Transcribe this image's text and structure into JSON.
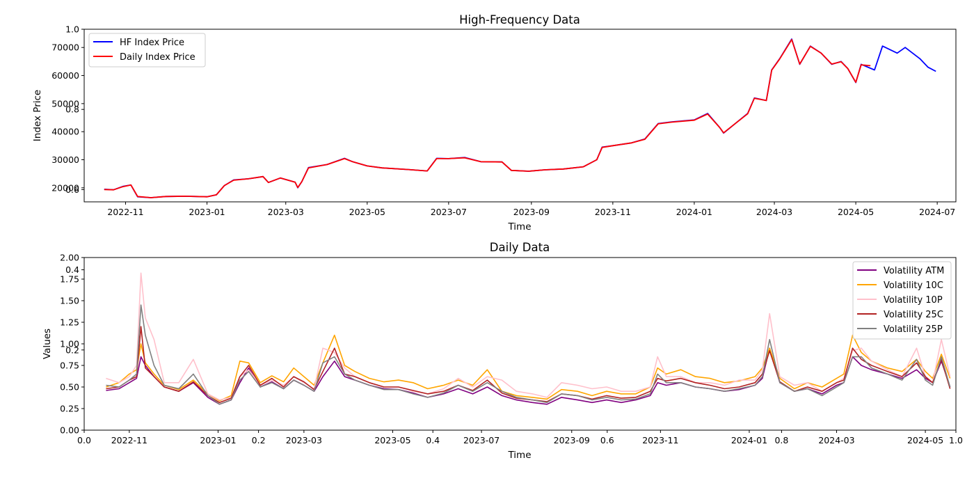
{
  "chart_data": [
    {
      "type": "line",
      "title": "High-Frequency Data",
      "xlabel": "Time",
      "ylabel": "Index Price",
      "xlim": [
        "2022-10-01",
        "2024-07-15"
      ],
      "ylim": [
        15000,
        76500
      ],
      "x_ticks": [
        "2022-11",
        "2023-01",
        "2023-03",
        "2023-05",
        "2023-07",
        "2023-09",
        "2023-11",
        "2024-01",
        "2024-03",
        "2024-05",
        "2024-07"
      ],
      "y_ticks": [
        20000,
        30000,
        40000,
        50000,
        60000,
        70000
      ],
      "ghost_axis": {
        "ticks": [
          "0.6",
          "0.8",
          "1.0"
        ]
      },
      "legend_position": "upper left",
      "series": [
        {
          "name": "HF Index Price",
          "color": "#0000ff",
          "x": [
            "2022-10-16",
            "2022-10-23",
            "2022-10-30",
            "2022-11-05",
            "2022-11-08",
            "2022-11-10",
            "2022-11-20",
            "2022-12-01",
            "2022-12-15",
            "2023-01-01",
            "2023-01-08",
            "2023-01-14",
            "2023-01-21",
            "2023-02-01",
            "2023-02-12",
            "2023-02-16",
            "2023-02-25",
            "2023-03-08",
            "2023-03-10",
            "2023-03-13",
            "2023-03-18",
            "2023-04-01",
            "2023-04-14",
            "2023-04-20",
            "2023-05-01",
            "2023-05-12",
            "2023-06-01",
            "2023-06-15",
            "2023-06-22",
            "2023-07-01",
            "2023-07-13",
            "2023-07-25",
            "2023-08-10",
            "2023-08-17",
            "2023-08-30",
            "2023-09-11",
            "2023-09-25",
            "2023-10-10",
            "2023-10-20",
            "2023-10-24",
            "2023-11-01",
            "2023-11-15",
            "2023-11-25",
            "2023-12-05",
            "2023-12-15",
            "2024-01-01",
            "2024-01-11",
            "2024-01-20",
            "2024-01-23",
            "2024-02-01",
            "2024-02-10",
            "2024-02-15",
            "2024-02-24",
            "2024-02-28",
            "2024-03-05",
            "2024-03-14",
            "2024-03-20",
            "2024-03-28",
            "2024-04-05",
            "2024-04-13",
            "2024-04-20",
            "2024-04-25",
            "2024-05-01",
            "2024-05-05",
            "2024-05-15",
            "2024-05-21",
            "2024-06-01",
            "2024-06-07",
            "2024-06-18",
            "2024-06-24",
            "2024-06-30"
          ],
          "y": [
            19500,
            19300,
            20500,
            21000,
            18500,
            16800,
            16500,
            16900,
            17000,
            16800,
            17500,
            20800,
            22800,
            23200,
            24000,
            21900,
            23500,
            22000,
            20000,
            22200,
            27200,
            28300,
            30500,
            29300,
            27800,
            27100,
            26500,
            26000,
            30500,
            30400,
            30800,
            29300,
            29200,
            26200,
            25900,
            26400,
            26700,
            27500,
            30000,
            34500,
            35000,
            36000,
            37400,
            42900,
            43500,
            44200,
            46500,
            41500,
            39500,
            43000,
            46500,
            52000,
            51100,
            62000,
            66000,
            73000,
            64000,
            70500,
            68000,
            64000,
            65000,
            62500,
            57500,
            64000,
            62000,
            70500,
            68000,
            70000,
            66000,
            63000,
            61500
          ]
        },
        {
          "name": "Daily Index Price",
          "color": "#ff0000",
          "x": [
            "2022-10-16",
            "2022-10-23",
            "2022-10-30",
            "2022-11-05",
            "2022-11-08",
            "2022-11-10",
            "2022-11-20",
            "2022-12-01",
            "2022-12-15",
            "2023-01-01",
            "2023-01-08",
            "2023-01-14",
            "2023-01-21",
            "2023-02-01",
            "2023-02-12",
            "2023-02-16",
            "2023-02-25",
            "2023-03-08",
            "2023-03-10",
            "2023-03-13",
            "2023-03-18",
            "2023-04-01",
            "2023-04-14",
            "2023-04-20",
            "2023-05-01",
            "2023-05-12",
            "2023-06-01",
            "2023-06-15",
            "2023-06-22",
            "2023-07-01",
            "2023-07-13",
            "2023-07-25",
            "2023-08-10",
            "2023-08-17",
            "2023-08-30",
            "2023-09-11",
            "2023-09-25",
            "2023-10-10",
            "2023-10-20",
            "2023-10-24",
            "2023-11-01",
            "2023-11-15",
            "2023-11-25",
            "2023-12-05",
            "2023-12-15",
            "2024-01-01",
            "2024-01-11",
            "2024-01-20",
            "2024-01-23",
            "2024-02-01",
            "2024-02-10",
            "2024-02-15",
            "2024-02-24",
            "2024-02-28",
            "2024-03-05",
            "2024-03-14",
            "2024-03-20",
            "2024-03-28",
            "2024-04-05",
            "2024-04-13",
            "2024-04-20",
            "2024-04-25",
            "2024-05-01",
            "2024-05-05",
            "2024-05-12"
          ],
          "y": [
            19400,
            19300,
            20400,
            21000,
            18600,
            16900,
            16500,
            16900,
            17000,
            16800,
            17500,
            20800,
            22700,
            23200,
            24000,
            21900,
            23500,
            22000,
            20100,
            22200,
            27100,
            28300,
            30400,
            29300,
            27800,
            27100,
            26500,
            26000,
            30400,
            30400,
            30700,
            29300,
            29200,
            26200,
            25900,
            26400,
            26700,
            27500,
            30000,
            34400,
            35000,
            36000,
            37300,
            42800,
            43400,
            44100,
            46300,
            41500,
            39600,
            43000,
            46400,
            51900,
            51100,
            61900,
            65900,
            72800,
            64100,
            70400,
            68000,
            64100,
            64900,
            62500,
            57600,
            63800,
            63500
          ]
        }
      ]
    },
    {
      "type": "line",
      "title": "Daily Data",
      "xlabel": "Time",
      "ylabel": "Values",
      "xlim": [
        "2022-10-01",
        "2024-05-22"
      ],
      "ylim": [
        0,
        2.0
      ],
      "x_ticks": [
        "2022-11",
        "2023-01",
        "2023-03",
        "2023-05",
        "2023-07",
        "2023-09",
        "2023-11",
        "2024-01",
        "2024-03",
        "2024-05"
      ],
      "y_ticks": [
        0.0,
        0.25,
        0.5,
        0.75,
        1.0,
        1.25,
        1.5,
        1.75,
        2.0
      ],
      "ghost_axis": {
        "x_ticks": [
          "0.0",
          "0.2",
          "0.4",
          "0.6",
          "0.8",
          "1.0"
        ],
        "y_ticks": [
          "0.2",
          "0.4"
        ]
      },
      "legend_position": "upper right",
      "x": [
        "2022-10-16",
        "2022-10-25",
        "2022-11-01",
        "2022-11-06",
        "2022-11-09",
        "2022-11-12",
        "2022-11-18",
        "2022-11-25",
        "2022-12-05",
        "2022-12-15",
        "2022-12-25",
        "2023-01-02",
        "2023-01-10",
        "2023-01-16",
        "2023-01-22",
        "2023-01-30",
        "2023-02-07",
        "2023-02-15",
        "2023-02-22",
        "2023-03-01",
        "2023-03-08",
        "2023-03-14",
        "2023-03-22",
        "2023-03-29",
        "2023-04-05",
        "2023-04-15",
        "2023-04-25",
        "2023-05-05",
        "2023-05-15",
        "2023-05-25",
        "2023-06-05",
        "2023-06-15",
        "2023-06-25",
        "2023-07-05",
        "2023-07-15",
        "2023-07-25",
        "2023-08-05",
        "2023-08-15",
        "2023-08-25",
        "2023-09-05",
        "2023-09-15",
        "2023-09-25",
        "2023-10-05",
        "2023-10-15",
        "2023-10-25",
        "2023-10-30",
        "2023-11-05",
        "2023-11-15",
        "2023-11-25",
        "2023-12-05",
        "2023-12-15",
        "2023-12-25",
        "2024-01-05",
        "2024-01-10",
        "2024-01-15",
        "2024-01-22",
        "2024-02-01",
        "2024-02-10",
        "2024-02-20",
        "2024-03-01",
        "2024-03-06",
        "2024-03-12",
        "2024-03-18",
        "2024-03-25",
        "2024-04-05",
        "2024-04-15",
        "2024-04-25",
        "2024-05-01",
        "2024-05-06",
        "2024-05-12",
        "2024-05-18"
      ],
      "series": [
        {
          "name": "Volatility ATM",
          "color": "#800080",
          "values": [
            0.46,
            0.48,
            0.55,
            0.6,
            0.85,
            0.75,
            0.62,
            0.5,
            0.45,
            0.55,
            0.38,
            0.3,
            0.35,
            0.55,
            0.72,
            0.5,
            0.56,
            0.48,
            0.58,
            0.52,
            0.45,
            0.62,
            0.8,
            0.62,
            0.58,
            0.52,
            0.48,
            0.47,
            0.43,
            0.38,
            0.42,
            0.48,
            0.42,
            0.5,
            0.4,
            0.35,
            0.32,
            0.3,
            0.38,
            0.35,
            0.32,
            0.35,
            0.32,
            0.35,
            0.4,
            0.55,
            0.52,
            0.55,
            0.5,
            0.48,
            0.45,
            0.47,
            0.52,
            0.6,
            0.95,
            0.55,
            0.45,
            0.48,
            0.42,
            0.52,
            0.55,
            0.85,
            0.75,
            0.7,
            0.65,
            0.6,
            0.7,
            0.6,
            0.55,
            0.8,
            0.5
          ]
        },
        {
          "name": "Volatility 10C",
          "color": "#ffa500",
          "values": [
            0.5,
            0.55,
            0.65,
            0.7,
            1.0,
            0.78,
            0.65,
            0.52,
            0.47,
            0.58,
            0.42,
            0.34,
            0.4,
            0.8,
            0.78,
            0.55,
            0.63,
            0.56,
            0.72,
            0.62,
            0.52,
            0.78,
            1.1,
            0.75,
            0.68,
            0.6,
            0.56,
            0.58,
            0.55,
            0.48,
            0.52,
            0.58,
            0.52,
            0.7,
            0.45,
            0.4,
            0.38,
            0.36,
            0.47,
            0.45,
            0.4,
            0.45,
            0.42,
            0.42,
            0.5,
            0.72,
            0.65,
            0.7,
            0.62,
            0.6,
            0.55,
            0.57,
            0.62,
            0.72,
            0.95,
            0.6,
            0.48,
            0.55,
            0.5,
            0.6,
            0.65,
            1.1,
            0.9,
            0.8,
            0.72,
            0.68,
            0.82,
            0.68,
            0.6,
            0.88,
            0.6
          ]
        },
        {
          "name": "Volatility 10P",
          "color": "#ffc0cb",
          "values": [
            0.6,
            0.55,
            0.62,
            0.75,
            1.82,
            1.3,
            1.05,
            0.55,
            0.55,
            0.82,
            0.42,
            0.35,
            0.38,
            0.62,
            0.7,
            0.52,
            0.58,
            0.52,
            0.62,
            0.55,
            0.48,
            0.95,
            0.9,
            0.72,
            0.62,
            0.55,
            0.5,
            0.5,
            0.45,
            0.42,
            0.48,
            0.6,
            0.5,
            0.62,
            0.58,
            0.45,
            0.42,
            0.38,
            0.55,
            0.52,
            0.48,
            0.5,
            0.45,
            0.45,
            0.5,
            0.85,
            0.62,
            0.62,
            0.55,
            0.55,
            0.52,
            0.58,
            0.58,
            0.7,
            1.35,
            0.62,
            0.52,
            0.55,
            0.45,
            0.55,
            0.6,
            0.92,
            0.95,
            0.8,
            0.7,
            0.62,
            0.95,
            0.62,
            0.55,
            1.05,
            0.62
          ]
        },
        {
          "name": "Volatility 25C",
          "color": "#b22222",
          "values": [
            0.48,
            0.5,
            0.58,
            0.62,
            1.2,
            0.72,
            0.62,
            0.5,
            0.45,
            0.56,
            0.4,
            0.32,
            0.37,
            0.62,
            0.75,
            0.52,
            0.6,
            0.5,
            0.62,
            0.56,
            0.47,
            0.68,
            0.95,
            0.65,
            0.62,
            0.55,
            0.5,
            0.5,
            0.46,
            0.42,
            0.45,
            0.52,
            0.46,
            0.58,
            0.43,
            0.37,
            0.35,
            0.33,
            0.42,
            0.4,
            0.36,
            0.4,
            0.37,
            0.38,
            0.45,
            0.6,
            0.57,
            0.6,
            0.55,
            0.52,
            0.48,
            0.5,
            0.55,
            0.65,
            0.92,
            0.56,
            0.45,
            0.5,
            0.45,
            0.55,
            0.58,
            0.95,
            0.82,
            0.75,
            0.68,
            0.62,
            0.78,
            0.62,
            0.55,
            0.82,
            0.48
          ]
        },
        {
          "name": "Volatility 25P",
          "color": "#808080",
          "values": [
            0.52,
            0.5,
            0.58,
            0.65,
            1.45,
            1.1,
            0.75,
            0.52,
            0.48,
            0.65,
            0.4,
            0.3,
            0.35,
            0.58,
            0.68,
            0.5,
            0.55,
            0.48,
            0.58,
            0.52,
            0.45,
            0.78,
            0.85,
            0.65,
            0.58,
            0.52,
            0.47,
            0.47,
            0.42,
            0.38,
            0.43,
            0.52,
            0.45,
            0.55,
            0.45,
            0.38,
            0.35,
            0.32,
            0.42,
            0.4,
            0.35,
            0.38,
            0.35,
            0.36,
            0.42,
            0.65,
            0.55,
            0.55,
            0.5,
            0.48,
            0.45,
            0.48,
            0.52,
            0.62,
            1.05,
            0.55,
            0.45,
            0.48,
            0.4,
            0.5,
            0.55,
            0.85,
            0.85,
            0.72,
            0.65,
            0.58,
            0.82,
            0.58,
            0.52,
            0.85,
            0.5
          ]
        }
      ]
    }
  ]
}
